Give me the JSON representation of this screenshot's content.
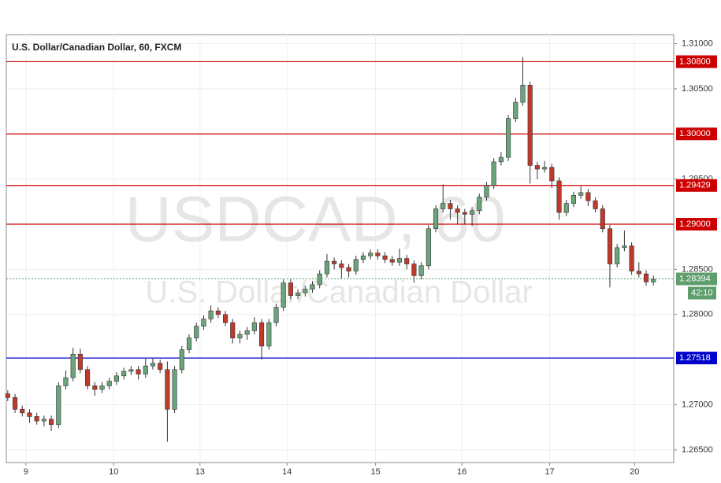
{
  "chart_data": {
    "type": "candlestick",
    "title": "U.S. Dollar/Canadian Dollar, 60, FXCM",
    "watermark": "USDCAD, 60",
    "watermark_subtitle": "U.S. Dollar/Canadian Dollar",
    "up_color": "#6aa57a",
    "down_color": "#c0392b",
    "open": [
      1.2712,
      1.2708,
      1.2695,
      1.2691,
      1.2687,
      1.2682,
      1.2684,
      1.2678,
      1.2721,
      1.273,
      1.2756,
      1.2739,
      1.2721,
      1.2717,
      1.2721,
      1.2726,
      1.2732,
      1.2737,
      1.2739,
      1.2734,
      1.2743,
      1.2746,
      1.2739,
      1.2695,
      1.2739,
      1.2761,
      1.2774,
      1.2787,
      1.2795,
      1.2804,
      1.28,
      1.2791,
      1.2774,
      1.2778,
      1.2782,
      1.2791,
      1.2765,
      1.2791,
      1.2808,
      1.2835,
      1.2821,
      1.2824,
      1.2828,
      1.2833,
      1.2845,
      1.2859,
      1.2856,
      1.2852,
      1.2848,
      1.2861,
      1.2865,
      1.2868,
      1.2865,
      1.2861,
      1.2858,
      1.2862,
      1.2856,
      1.2843,
      1.2854,
      1.2895,
      1.2917,
      1.2923,
      1.2917,
      1.2913,
      1.2911,
      1.2915,
      1.293,
      1.2943,
      1.2969,
      1.2974,
      1.3017,
      1.3035,
      1.3054,
      1.2965,
      1.2961,
      1.2963,
      1.2948,
      1.2913,
      1.2923,
      1.2932,
      1.2935,
      1.2926,
      1.2917,
      1.2895,
      1.2856,
      1.2874,
      1.2876,
      1.2848,
      1.2845,
      1.2836
    ],
    "high": [
      1.2716,
      1.2712,
      1.2699,
      1.2695,
      1.2691,
      1.2688,
      1.2688,
      1.2725,
      1.2738,
      1.2763,
      1.2762,
      1.2743,
      1.2725,
      1.2725,
      1.273,
      1.2736,
      1.2741,
      1.2743,
      1.2743,
      1.2751,
      1.2752,
      1.275,
      1.2748,
      1.2743,
      1.2765,
      1.2778,
      1.2791,
      1.2799,
      1.281,
      1.2808,
      1.2804,
      1.2795,
      1.2782,
      1.2786,
      1.2797,
      1.2795,
      1.2795,
      1.2812,
      1.2839,
      1.2839,
      1.2828,
      1.2832,
      1.2837,
      1.2849,
      1.2867,
      1.2863,
      1.286,
      1.2856,
      1.2865,
      1.2869,
      1.2872,
      1.2872,
      1.2869,
      1.2865,
      1.2873,
      1.2866,
      1.286,
      1.2858,
      1.2899,
      1.2921,
      1.2944,
      1.2927,
      1.2921,
      1.2917,
      1.2919,
      1.2934,
      1.2947,
      1.2973,
      1.298,
      1.3021,
      1.304,
      1.3085,
      1.3058,
      1.2969,
      1.297,
      1.2967,
      1.2952,
      1.2927,
      1.2936,
      1.2942,
      1.2939,
      1.293,
      1.2921,
      1.2899,
      1.2878,
      1.2893,
      1.288,
      1.2858,
      1.2849,
      1.2843
    ],
    "low": [
      1.2704,
      1.2691,
      1.2687,
      1.268,
      1.2678,
      1.2676,
      1.2671,
      1.2674,
      1.2717,
      1.2726,
      1.2735,
      1.2717,
      1.271,
      1.2713,
      1.2717,
      1.2722,
      1.2728,
      1.2733,
      1.2728,
      1.273,
      1.2739,
      1.2735,
      1.2659,
      1.2691,
      1.2735,
      1.2757,
      1.277,
      1.2783,
      1.2791,
      1.2796,
      1.2787,
      1.2768,
      1.2768,
      1.2772,
      1.2778,
      1.275,
      1.2761,
      1.2787,
      1.2804,
      1.2817,
      1.2817,
      1.282,
      1.2824,
      1.2829,
      1.2841,
      1.285,
      1.284,
      1.2841,
      1.2844,
      1.2857,
      1.2861,
      1.2861,
      1.2857,
      1.2854,
      1.2854,
      1.285,
      1.2835,
      1.2839,
      1.285,
      1.2891,
      1.2913,
      1.2905,
      1.29,
      1.29,
      1.2898,
      1.2911,
      1.2926,
      1.2939,
      1.2965,
      1.297,
      1.3013,
      1.3031,
      1.2945,
      1.295,
      1.2957,
      1.294,
      1.2905,
      1.2909,
      1.2919,
      1.2928,
      1.292,
      1.2913,
      1.2891,
      1.283,
      1.2852,
      1.287,
      1.2844,
      1.2841,
      1.2832,
      1.2832
    ],
    "close": [
      1.2708,
      1.2695,
      1.2691,
      1.2687,
      1.2682,
      1.2684,
      1.2678,
      1.2721,
      1.273,
      1.2756,
      1.2739,
      1.2721,
      1.2717,
      1.2721,
      1.2726,
      1.2732,
      1.2737,
      1.2739,
      1.2734,
      1.2743,
      1.2746,
      1.2739,
      1.2695,
      1.2739,
      1.2761,
      1.2774,
      1.2787,
      1.2795,
      1.2804,
      1.28,
      1.2791,
      1.2774,
      1.2778,
      1.2782,
      1.2791,
      1.2765,
      1.2791,
      1.2808,
      1.2835,
      1.2821,
      1.2824,
      1.2828,
      1.2833,
      1.2845,
      1.2859,
      1.2856,
      1.2852,
      1.2848,
      1.2861,
      1.2865,
      1.2868,
      1.2865,
      1.2861,
      1.2858,
      1.2862,
      1.2856,
      1.2843,
      1.2854,
      1.2895,
      1.2917,
      1.2923,
      1.2917,
      1.2913,
      1.2911,
      1.2915,
      1.293,
      1.2943,
      1.2969,
      1.2974,
      1.3017,
      1.3035,
      1.3054,
      1.2965,
      1.2961,
      1.2963,
      1.2948,
      1.2913,
      1.2923,
      1.2932,
      1.2935,
      1.2926,
      1.2917,
      1.2895,
      1.2856,
      1.2874,
      1.2876,
      1.2848,
      1.2845,
      1.2836,
      1.2839
    ],
    "xlim": [
      -0.2,
      91.8
    ],
    "xticks": [
      {
        "value": 2.5,
        "label": "9"
      },
      {
        "value": 14.6,
        "label": "10"
      },
      {
        "value": 26.5,
        "label": "13"
      },
      {
        "value": 38.5,
        "label": "14"
      },
      {
        "value": 50.7,
        "label": "15"
      },
      {
        "value": 62.6,
        "label": "16"
      },
      {
        "value": 74.7,
        "label": "17"
      },
      {
        "value": 86.4,
        "label": "20"
      }
    ],
    "ylim": [
      1.2636,
      1.311
    ],
    "yticks": [
      {
        "value": 1.31,
        "label": "1.31000"
      },
      {
        "value": 1.305,
        "label": "1.30500"
      },
      {
        "value": 1.295,
        "label": "1.29500"
      },
      {
        "value": 1.285,
        "label": "1.28500"
      },
      {
        "value": 1.28,
        "label": "1.28000"
      },
      {
        "value": 1.27,
        "label": "1.27000"
      },
      {
        "value": 1.265,
        "label": "1.26500"
      }
    ],
    "grid": true,
    "levels": [
      {
        "value": 1.308,
        "label": "1.30800",
        "color": "#cc0000"
      },
      {
        "value": 1.3,
        "label": "1.30000",
        "color": "#cc0000"
      },
      {
        "value": 1.29429,
        "label": "1.29429",
        "color": "#cc0000"
      },
      {
        "value": 1.29,
        "label": "1.29000",
        "color": "#cc0000"
      },
      {
        "value": 1.27518,
        "label": "1.27518",
        "color": "#0000cc"
      }
    ],
    "current_price": {
      "value": 1.28394,
      "label": "1.28394",
      "countdown": "42:10",
      "color": "#5d9e6c"
    }
  }
}
